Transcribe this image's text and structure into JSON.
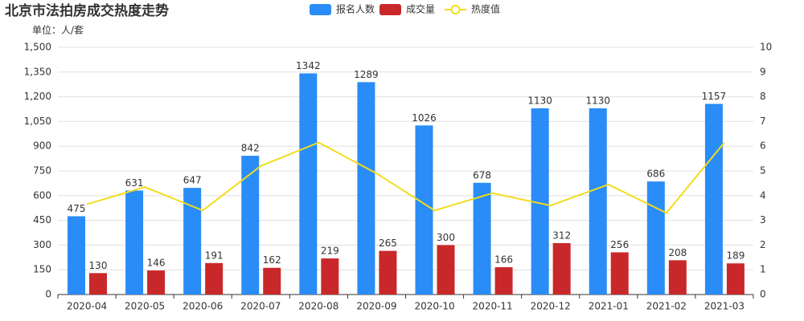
{
  "chart_data": {
    "type": "bar",
    "title": "北京市法拍房成交热度走势",
    "subtitle": "单位：人/套",
    "categories": [
      "2020-04",
      "2020-05",
      "2020-06",
      "2020-07",
      "2020-08",
      "2020-09",
      "2020-10",
      "2020-11",
      "2020-12",
      "2021-01",
      "2021-02",
      "2021-03"
    ],
    "series": [
      {
        "name": "报名人数",
        "color": "#2a8cf6",
        "values": [
          475,
          631,
          647,
          842,
          1342,
          1289,
          1026,
          678,
          1130,
          1130,
          686,
          1157
        ]
      },
      {
        "name": "成交量",
        "color": "#c9282a",
        "values": [
          130,
          146,
          191,
          162,
          219,
          265,
          300,
          166,
          312,
          256,
          208,
          189
        ]
      },
      {
        "name": "热度值",
        "color": "#f2dc1c",
        "type": "line",
        "axis": "y2",
        "values": [
          3.65,
          4.35,
          3.4,
          5.2,
          6.15,
          4.9,
          3.4,
          4.1,
          3.6,
          4.45,
          3.3,
          6.15
        ]
      }
    ],
    "ylim": [
      0,
      1500
    ],
    "yticks": [
      0,
      150,
      300,
      450,
      600,
      750,
      900,
      {
        "value": 1050,
        "label": "1,050"
      },
      {
        "value": 1200,
        "label": "1,200"
      },
      {
        "value": 1350,
        "label": "1,350"
      },
      {
        "value": 1500,
        "label": "1,500"
      }
    ],
    "y2lim": [
      0,
      10
    ],
    "y2ticks": [
      0,
      1,
      2,
      3,
      4,
      5,
      6,
      7,
      8,
      9,
      10
    ],
    "grid": true
  }
}
